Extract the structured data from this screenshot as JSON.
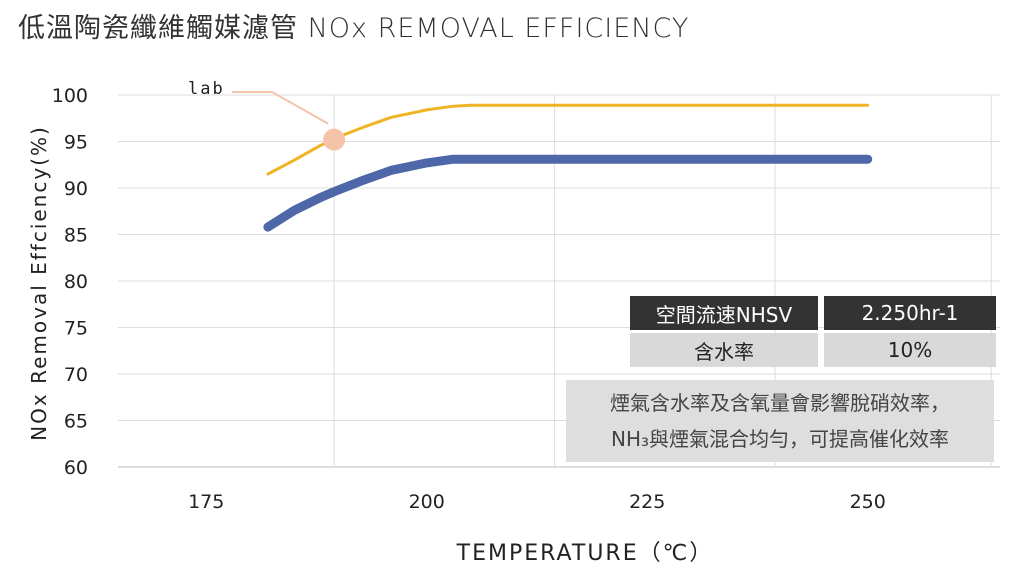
{
  "chart_data": {
    "type": "line",
    "title": "低溫陶瓷纖維觸媒濾管 NOx REMOVAL EFFICIENCY",
    "xlabel": "TEMPERATURE（℃）",
    "ylabel": "NOx Removal Effciency(%)",
    "xlim": [
      165,
      265
    ],
    "ylim": [
      60,
      100
    ],
    "x_ticks": [
      "175",
      "200",
      "225",
      "250"
    ],
    "y_ticks": [
      "100",
      "95",
      "90",
      "85",
      "80",
      "75",
      "70",
      "65",
      "60"
    ],
    "grid": true,
    "series": [
      {
        "name": "lab",
        "color": "#f0b323",
        "x": [
          182,
          185,
          188,
          190,
          193,
          196,
          200,
          203,
          205,
          210,
          230,
          250
        ],
        "y": [
          91.5,
          93.0,
          94.6,
          95.5,
          96.6,
          97.6,
          98.4,
          98.8,
          98.9,
          98.9,
          98.9,
          98.9
        ]
      },
      {
        "color": "#4e67a8",
        "x": [
          182,
          185,
          188,
          190,
          193,
          196,
          200,
          203,
          205,
          210,
          230,
          250
        ],
        "y": [
          85.8,
          87.6,
          89.0,
          89.8,
          90.9,
          91.9,
          92.7,
          93.1,
          93.1,
          93.1,
          93.1,
          93.1
        ]
      }
    ],
    "annotations": [
      {
        "text": "lab",
        "x": 189.5,
        "y": 95.2
      }
    ]
  },
  "table": {
    "rows": [
      {
        "label": "空間流速NHSV",
        "value": "2.250hr-1"
      },
      {
        "label": "含水率",
        "value": "10%"
      }
    ]
  },
  "note": {
    "line1": "煙氣含水率及含氧量會影響脫硝效率，",
    "line2": "NH₃與煙氣混合均勻，可提高催化效率"
  }
}
